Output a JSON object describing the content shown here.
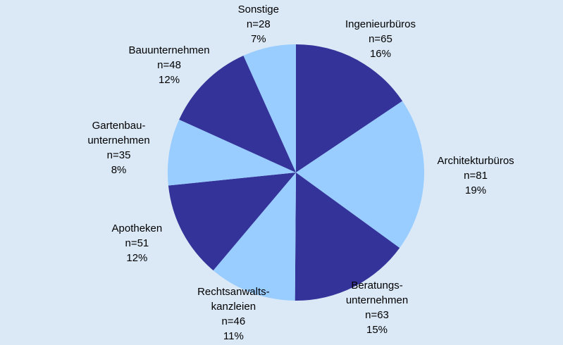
{
  "chart_data": {
    "type": "pie",
    "categories": [
      "Ingenieurbüros",
      "Architekturbüros",
      "Beratungs-\nunternehmen",
      "Rechtsanwalts-\nkanzleien",
      "Apotheken",
      "Gartenbau-\nunternehmen",
      "Bauunternehmen",
      "Sonstige"
    ],
    "values": [
      65,
      81,
      63,
      46,
      51,
      35,
      48,
      28
    ],
    "value_labels": [
      "n=65",
      "n=81",
      "n=63",
      "n=46",
      "n=51",
      "n=35",
      "n=48",
      "n=28"
    ],
    "share_labels": [
      "16%",
      "19%",
      "15%",
      "11%",
      "12%",
      "8%",
      "12%",
      "7%"
    ],
    "colors": [
      "#333399",
      "#99ccff",
      "#333399",
      "#99ccff",
      "#333399",
      "#99ccff",
      "#333399",
      "#99ccff"
    ]
  }
}
